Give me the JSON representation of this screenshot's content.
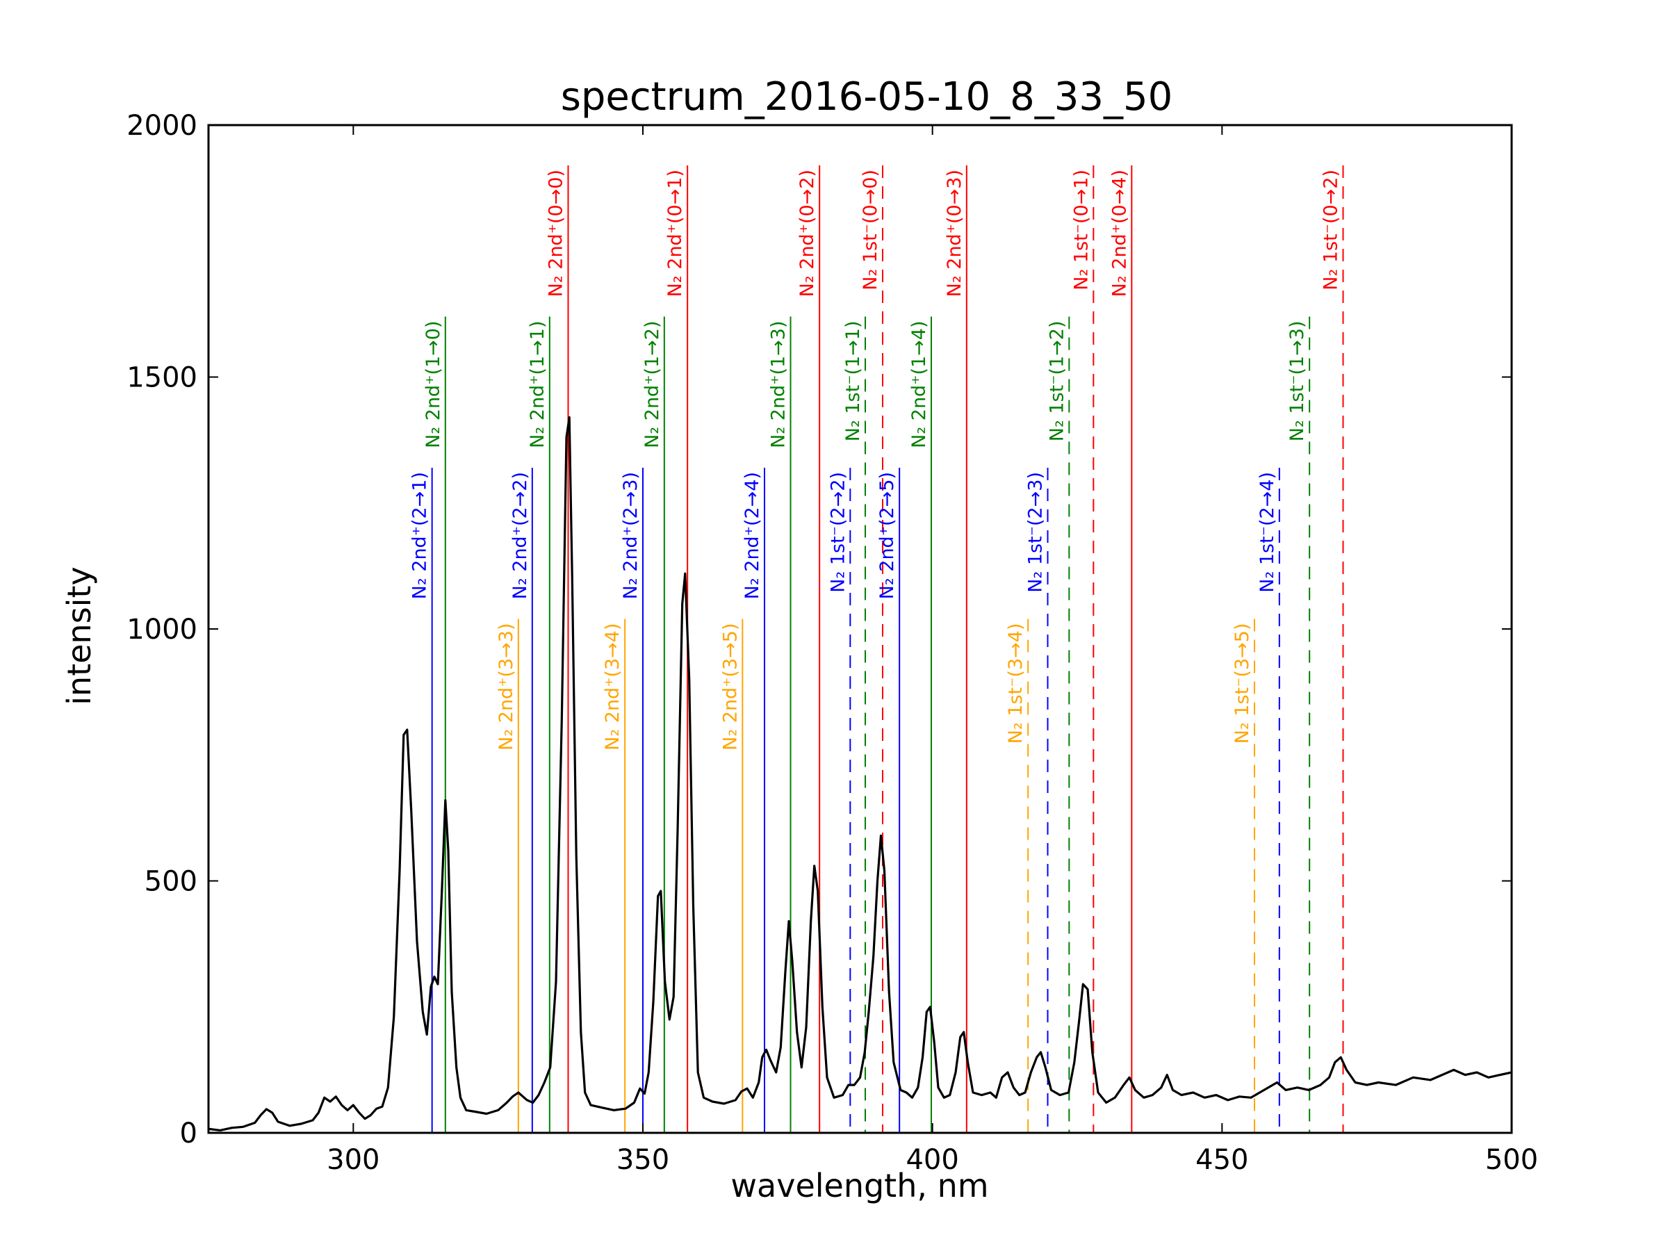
{
  "chart_data": {
    "type": "line",
    "title": "spectrum_2016-05-10_8_33_50",
    "xlabel": "wavelength, nm",
    "ylabel": "intensity",
    "xlim": [
      275,
      500
    ],
    "ylim": [
      0,
      2000
    ],
    "x_ticks": [
      300,
      350,
      400,
      450,
      500
    ],
    "y_ticks": [
      0,
      500,
      1000,
      1500,
      2000
    ],
    "grid": false,
    "spectrum": {
      "color": "#000000",
      "points": [
        [
          275,
          8
        ],
        [
          277,
          5
        ],
        [
          279,
          10
        ],
        [
          281,
          12
        ],
        [
          283,
          20
        ],
        [
          284,
          35
        ],
        [
          285,
          47
        ],
        [
          286,
          40
        ],
        [
          287,
          22
        ],
        [
          289,
          14
        ],
        [
          291,
          18
        ],
        [
          293,
          25
        ],
        [
          294,
          40
        ],
        [
          295,
          70
        ],
        [
          296,
          62
        ],
        [
          297,
          72
        ],
        [
          298,
          55
        ],
        [
          299,
          45
        ],
        [
          300,
          55
        ],
        [
          301,
          40
        ],
        [
          302,
          28
        ],
        [
          303,
          35
        ],
        [
          304,
          48
        ],
        [
          305,
          52
        ],
        [
          306,
          90
        ],
        [
          307,
          230
        ],
        [
          308,
          520
        ],
        [
          308.7,
          790
        ],
        [
          309.3,
          800
        ],
        [
          310,
          640
        ],
        [
          311,
          380
        ],
        [
          312,
          240
        ],
        [
          312.7,
          195
        ],
        [
          313.4,
          290
        ],
        [
          314,
          310
        ],
        [
          314.6,
          295
        ],
        [
          315.3,
          480
        ],
        [
          315.9,
          660
        ],
        [
          316.4,
          560
        ],
        [
          317,
          280
        ],
        [
          317.8,
          130
        ],
        [
          318.5,
          70
        ],
        [
          319.5,
          45
        ],
        [
          321,
          42
        ],
        [
          323,
          38
        ],
        [
          325,
          45
        ],
        [
          326.5,
          60
        ],
        [
          327.5,
          72
        ],
        [
          328.5,
          80
        ],
        [
          330,
          65
        ],
        [
          331,
          60
        ],
        [
          332,
          75
        ],
        [
          333,
          100
        ],
        [
          334,
          130
        ],
        [
          335,
          300
        ],
        [
          336,
          820
        ],
        [
          336.8,
          1380
        ],
        [
          337.3,
          1420
        ],
        [
          337.8,
          1100
        ],
        [
          338.5,
          550
        ],
        [
          339.3,
          200
        ],
        [
          340,
          80
        ],
        [
          341,
          55
        ],
        [
          343,
          50
        ],
        [
          345,
          45
        ],
        [
          347,
          48
        ],
        [
          348.5,
          60
        ],
        [
          349.5,
          88
        ],
        [
          350.3,
          78
        ],
        [
          351,
          120
        ],
        [
          351.8,
          260
        ],
        [
          352.6,
          470
        ],
        [
          353.1,
          480
        ],
        [
          353.8,
          300
        ],
        [
          354.6,
          225
        ],
        [
          355.3,
          270
        ],
        [
          356,
          600
        ],
        [
          356.8,
          1050
        ],
        [
          357.3,
          1110
        ],
        [
          358,
          900
        ],
        [
          358.7,
          450
        ],
        [
          359.5,
          120
        ],
        [
          360.5,
          70
        ],
        [
          362,
          62
        ],
        [
          364,
          58
        ],
        [
          366,
          65
        ],
        [
          367,
          82
        ],
        [
          368,
          88
        ],
        [
          369,
          70
        ],
        [
          370,
          100
        ],
        [
          370.6,
          150
        ],
        [
          371.3,
          165
        ],
        [
          372,
          145
        ],
        [
          373,
          120
        ],
        [
          373.8,
          170
        ],
        [
          374.6,
          320
        ],
        [
          375.2,
          420
        ],
        [
          375.8,
          340
        ],
        [
          376.6,
          200
        ],
        [
          377.4,
          130
        ],
        [
          378.2,
          210
        ],
        [
          379,
          420
        ],
        [
          379.6,
          530
        ],
        [
          380.2,
          480
        ],
        [
          381,
          250
        ],
        [
          381.8,
          110
        ],
        [
          383,
          70
        ],
        [
          384.5,
          75
        ],
        [
          385.5,
          95
        ],
        [
          386.5,
          95
        ],
        [
          387.5,
          110
        ],
        [
          388.3,
          160
        ],
        [
          389,
          240
        ],
        [
          389.8,
          350
        ],
        [
          390.5,
          500
        ],
        [
          391.1,
          590
        ],
        [
          391.7,
          520
        ],
        [
          392.5,
          280
        ],
        [
          393.3,
          140
        ],
        [
          394.5,
          85
        ],
        [
          395.5,
          80
        ],
        [
          396.5,
          70
        ],
        [
          397.5,
          90
        ],
        [
          398.3,
          150
        ],
        [
          399,
          240
        ],
        [
          399.6,
          250
        ],
        [
          400.3,
          180
        ],
        [
          401,
          90
        ],
        [
          402,
          70
        ],
        [
          403,
          75
        ],
        [
          404,
          120
        ],
        [
          404.8,
          190
        ],
        [
          405.4,
          200
        ],
        [
          406.1,
          140
        ],
        [
          407,
          80
        ],
        [
          408.5,
          75
        ],
        [
          410,
          80
        ],
        [
          411,
          70
        ],
        [
          412,
          110
        ],
        [
          413,
          120
        ],
        [
          414,
          90
        ],
        [
          415,
          75
        ],
        [
          416,
          80
        ],
        [
          417,
          120
        ],
        [
          418,
          150
        ],
        [
          418.7,
          160
        ],
        [
          419.5,
          130
        ],
        [
          420.5,
          85
        ],
        [
          422,
          75
        ],
        [
          423.5,
          80
        ],
        [
          424.5,
          140
        ],
        [
          425.3,
          220
        ],
        [
          426,
          295
        ],
        [
          426.8,
          285
        ],
        [
          427.6,
          160
        ],
        [
          428.6,
          80
        ],
        [
          430,
          60
        ],
        [
          431.5,
          70
        ],
        [
          433,
          95
        ],
        [
          434,
          110
        ],
        [
          435,
          85
        ],
        [
          436.5,
          70
        ],
        [
          438,
          75
        ],
        [
          439.5,
          90
        ],
        [
          440.5,
          115
        ],
        [
          441.5,
          85
        ],
        [
          443,
          75
        ],
        [
          445,
          80
        ],
        [
          447,
          70
        ],
        [
          449,
          75
        ],
        [
          451,
          65
        ],
        [
          453,
          72
        ],
        [
          455,
          70
        ],
        [
          456.5,
          80
        ],
        [
          458,
          90
        ],
        [
          459.5,
          100
        ],
        [
          461,
          85
        ],
        [
          463,
          90
        ],
        [
          465,
          85
        ],
        [
          467,
          95
        ],
        [
          468.5,
          110
        ],
        [
          469.5,
          140
        ],
        [
          470.5,
          150
        ],
        [
          471.5,
          125
        ],
        [
          473,
          100
        ],
        [
          475,
          95
        ],
        [
          477,
          100
        ],
        [
          480,
          95
        ],
        [
          483,
          110
        ],
        [
          486,
          105
        ],
        [
          488,
          115
        ],
        [
          490,
          125
        ],
        [
          492,
          115
        ],
        [
          494,
          120
        ],
        [
          496,
          110
        ],
        [
          498,
          115
        ],
        [
          500,
          120
        ]
      ]
    },
    "transition_lines": [
      {
        "label": "N₂ 2nd⁺(0→0)",
        "x": 337.1,
        "top": 1920,
        "color": "#ff0000",
        "style": "solid"
      },
      {
        "label": "N₂ 2nd⁺(0→1)",
        "x": 357.7,
        "top": 1920,
        "color": "#ff0000",
        "style": "solid"
      },
      {
        "label": "N₂ 2nd⁺(0→2)",
        "x": 380.5,
        "top": 1920,
        "color": "#ff0000",
        "style": "solid"
      },
      {
        "label": "N₂ 1st⁻(0→0)",
        "x": 391.4,
        "top": 1920,
        "color": "#ff0000",
        "style": "dashed"
      },
      {
        "label": "N₂ 2nd⁺(0→3)",
        "x": 405.9,
        "top": 1920,
        "color": "#ff0000",
        "style": "solid"
      },
      {
        "label": "N₂ 1st⁻(0→1)",
        "x": 427.8,
        "top": 1920,
        "color": "#ff0000",
        "style": "dashed"
      },
      {
        "label": "N₂ 2nd⁺(0→4)",
        "x": 434.4,
        "top": 1920,
        "color": "#ff0000",
        "style": "solid"
      },
      {
        "label": "N₂ 1st⁻(0→2)",
        "x": 470.9,
        "top": 1920,
        "color": "#ff0000",
        "style": "dashed"
      },
      {
        "label": "N₂ 2nd⁺(1→0)",
        "x": 315.9,
        "top": 1620,
        "color": "#008000",
        "style": "solid"
      },
      {
        "label": "N₂ 2nd⁺(1→1)",
        "x": 333.9,
        "top": 1620,
        "color": "#008000",
        "style": "solid"
      },
      {
        "label": "N₂ 2nd⁺(1→2)",
        "x": 353.7,
        "top": 1620,
        "color": "#008000",
        "style": "solid"
      },
      {
        "label": "N₂ 2nd⁺(1→3)",
        "x": 375.5,
        "top": 1620,
        "color": "#008000",
        "style": "solid"
      },
      {
        "label": "N₂ 1st⁻(1→1)",
        "x": 388.4,
        "top": 1620,
        "color": "#008000",
        "style": "dashed"
      },
      {
        "label": "N₂ 2nd⁺(1→4)",
        "x": 399.8,
        "top": 1620,
        "color": "#008000",
        "style": "solid"
      },
      {
        "label": "N₂ 1st⁻(1→2)",
        "x": 423.6,
        "top": 1620,
        "color": "#008000",
        "style": "dashed"
      },
      {
        "label": "N₂ 1st⁻(1→3)",
        "x": 465.1,
        "top": 1620,
        "color": "#008000",
        "style": "dashed"
      },
      {
        "label": "N₂ 2nd⁺(2→1)",
        "x": 313.6,
        "top": 1320,
        "color": "#0000ff",
        "style": "solid"
      },
      {
        "label": "N₂ 2nd⁺(2→2)",
        "x": 330.9,
        "top": 1320,
        "color": "#0000ff",
        "style": "solid"
      },
      {
        "label": "N₂ 2nd⁺(2→3)",
        "x": 350.0,
        "top": 1320,
        "color": "#0000ff",
        "style": "solid"
      },
      {
        "label": "N₂ 2nd⁺(2→4)",
        "x": 371.0,
        "top": 1320,
        "color": "#0000ff",
        "style": "solid"
      },
      {
        "label": "N₂ 1st⁻(2→2)",
        "x": 385.8,
        "top": 1320,
        "color": "#0000ff",
        "style": "dashed"
      },
      {
        "label": "N₂ 2nd⁺(2→5)",
        "x": 394.3,
        "top": 1320,
        "color": "#0000ff",
        "style": "solid"
      },
      {
        "label": "N₂ 1st⁻(2→3)",
        "x": 419.9,
        "top": 1320,
        "color": "#0000ff",
        "style": "dashed"
      },
      {
        "label": "N₂ 1st⁻(2→4)",
        "x": 459.9,
        "top": 1320,
        "color": "#0000ff",
        "style": "dashed"
      },
      {
        "label": "N₂ 2nd⁺(3→3)",
        "x": 328.5,
        "top": 1020,
        "color": "#ffa500",
        "style": "solid"
      },
      {
        "label": "N₂ 2nd⁺(3→4)",
        "x": 346.9,
        "top": 1020,
        "color": "#ffa500",
        "style": "solid"
      },
      {
        "label": "N₂ 2nd⁺(3→5)",
        "x": 367.2,
        "top": 1020,
        "color": "#ffa500",
        "style": "solid"
      },
      {
        "label": "N₂ 1st⁻(3→4)",
        "x": 416.5,
        "top": 1020,
        "color": "#ffa500",
        "style": "dashed"
      },
      {
        "label": "N₂ 1st⁻(3→5)",
        "x": 455.6,
        "top": 1020,
        "color": "#ffa500",
        "style": "dashed"
      }
    ]
  }
}
